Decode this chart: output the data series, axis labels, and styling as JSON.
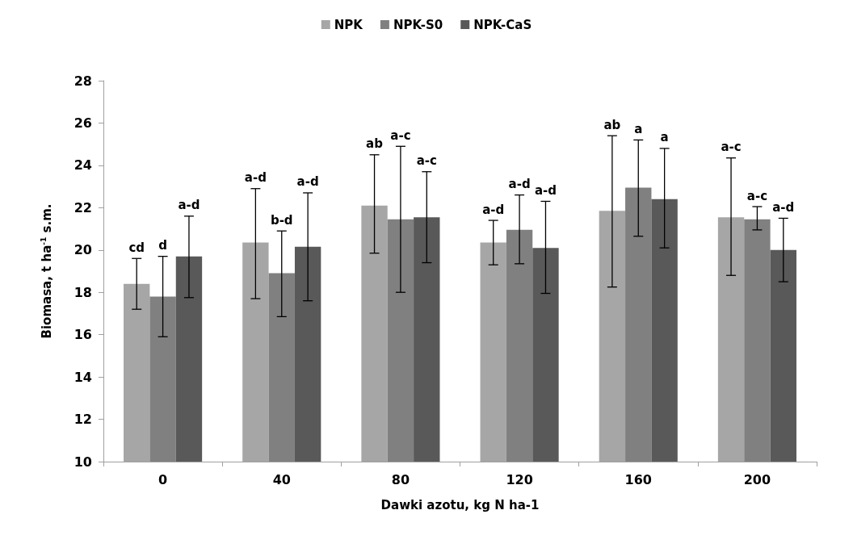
{
  "chart_data": {
    "type": "bar",
    "xlabel": "Dawki azotu, kg N ha-1",
    "ylabel": "Biomasa, t ha$^{-1}$ s.m.",
    "categories": [
      "0",
      "40",
      "80",
      "120",
      "160",
      "200"
    ],
    "ylim": [
      10,
      28
    ],
    "yticks": [
      10,
      12,
      14,
      16,
      18,
      20,
      22,
      24,
      26,
      28
    ],
    "grid": false,
    "legend": "top",
    "series": [
      {
        "name": "NPK",
        "color": "#a6a6a6",
        "values": [
          18.4,
          20.35,
          22.1,
          20.35,
          21.85,
          21.55
        ],
        "errors": [
          [
            17.2,
            19.6
          ],
          [
            17.7,
            22.9
          ],
          [
            19.85,
            24.5
          ],
          [
            19.3,
            21.4
          ],
          [
            18.25,
            25.4
          ],
          [
            18.8,
            24.35
          ]
        ]
      },
      {
        "name": "NPK-S0",
        "color": "#808080",
        "values": [
          17.8,
          18.9,
          21.45,
          20.95,
          22.95,
          21.45
        ],
        "errors": [
          [
            15.9,
            19.7
          ],
          [
            16.85,
            20.9
          ],
          [
            18.0,
            24.9
          ],
          [
            19.35,
            22.6
          ],
          [
            20.65,
            25.2
          ],
          [
            20.95,
            22.05
          ]
        ]
      },
      {
        "name": "NPK-CaS",
        "color": "#595959",
        "values": [
          19.7,
          20.15,
          21.55,
          20.1,
          22.4,
          20.0
        ],
        "errors": [
          [
            17.75,
            21.6
          ],
          [
            17.6,
            22.7
          ],
          [
            19.4,
            23.7
          ],
          [
            17.95,
            22.3
          ],
          [
            20.1,
            24.8
          ],
          [
            18.5,
            21.5
          ]
        ]
      }
    ],
    "annotations": [
      "cd",
      "d",
      "a-d",
      "a-d",
      "b-d",
      "a-d",
      "ab",
      "a-c",
      "a-c",
      "a-d",
      "a-d",
      "a-d",
      "ab",
      "a",
      "a",
      "a-c",
      "a-c",
      "a-d"
    ]
  }
}
